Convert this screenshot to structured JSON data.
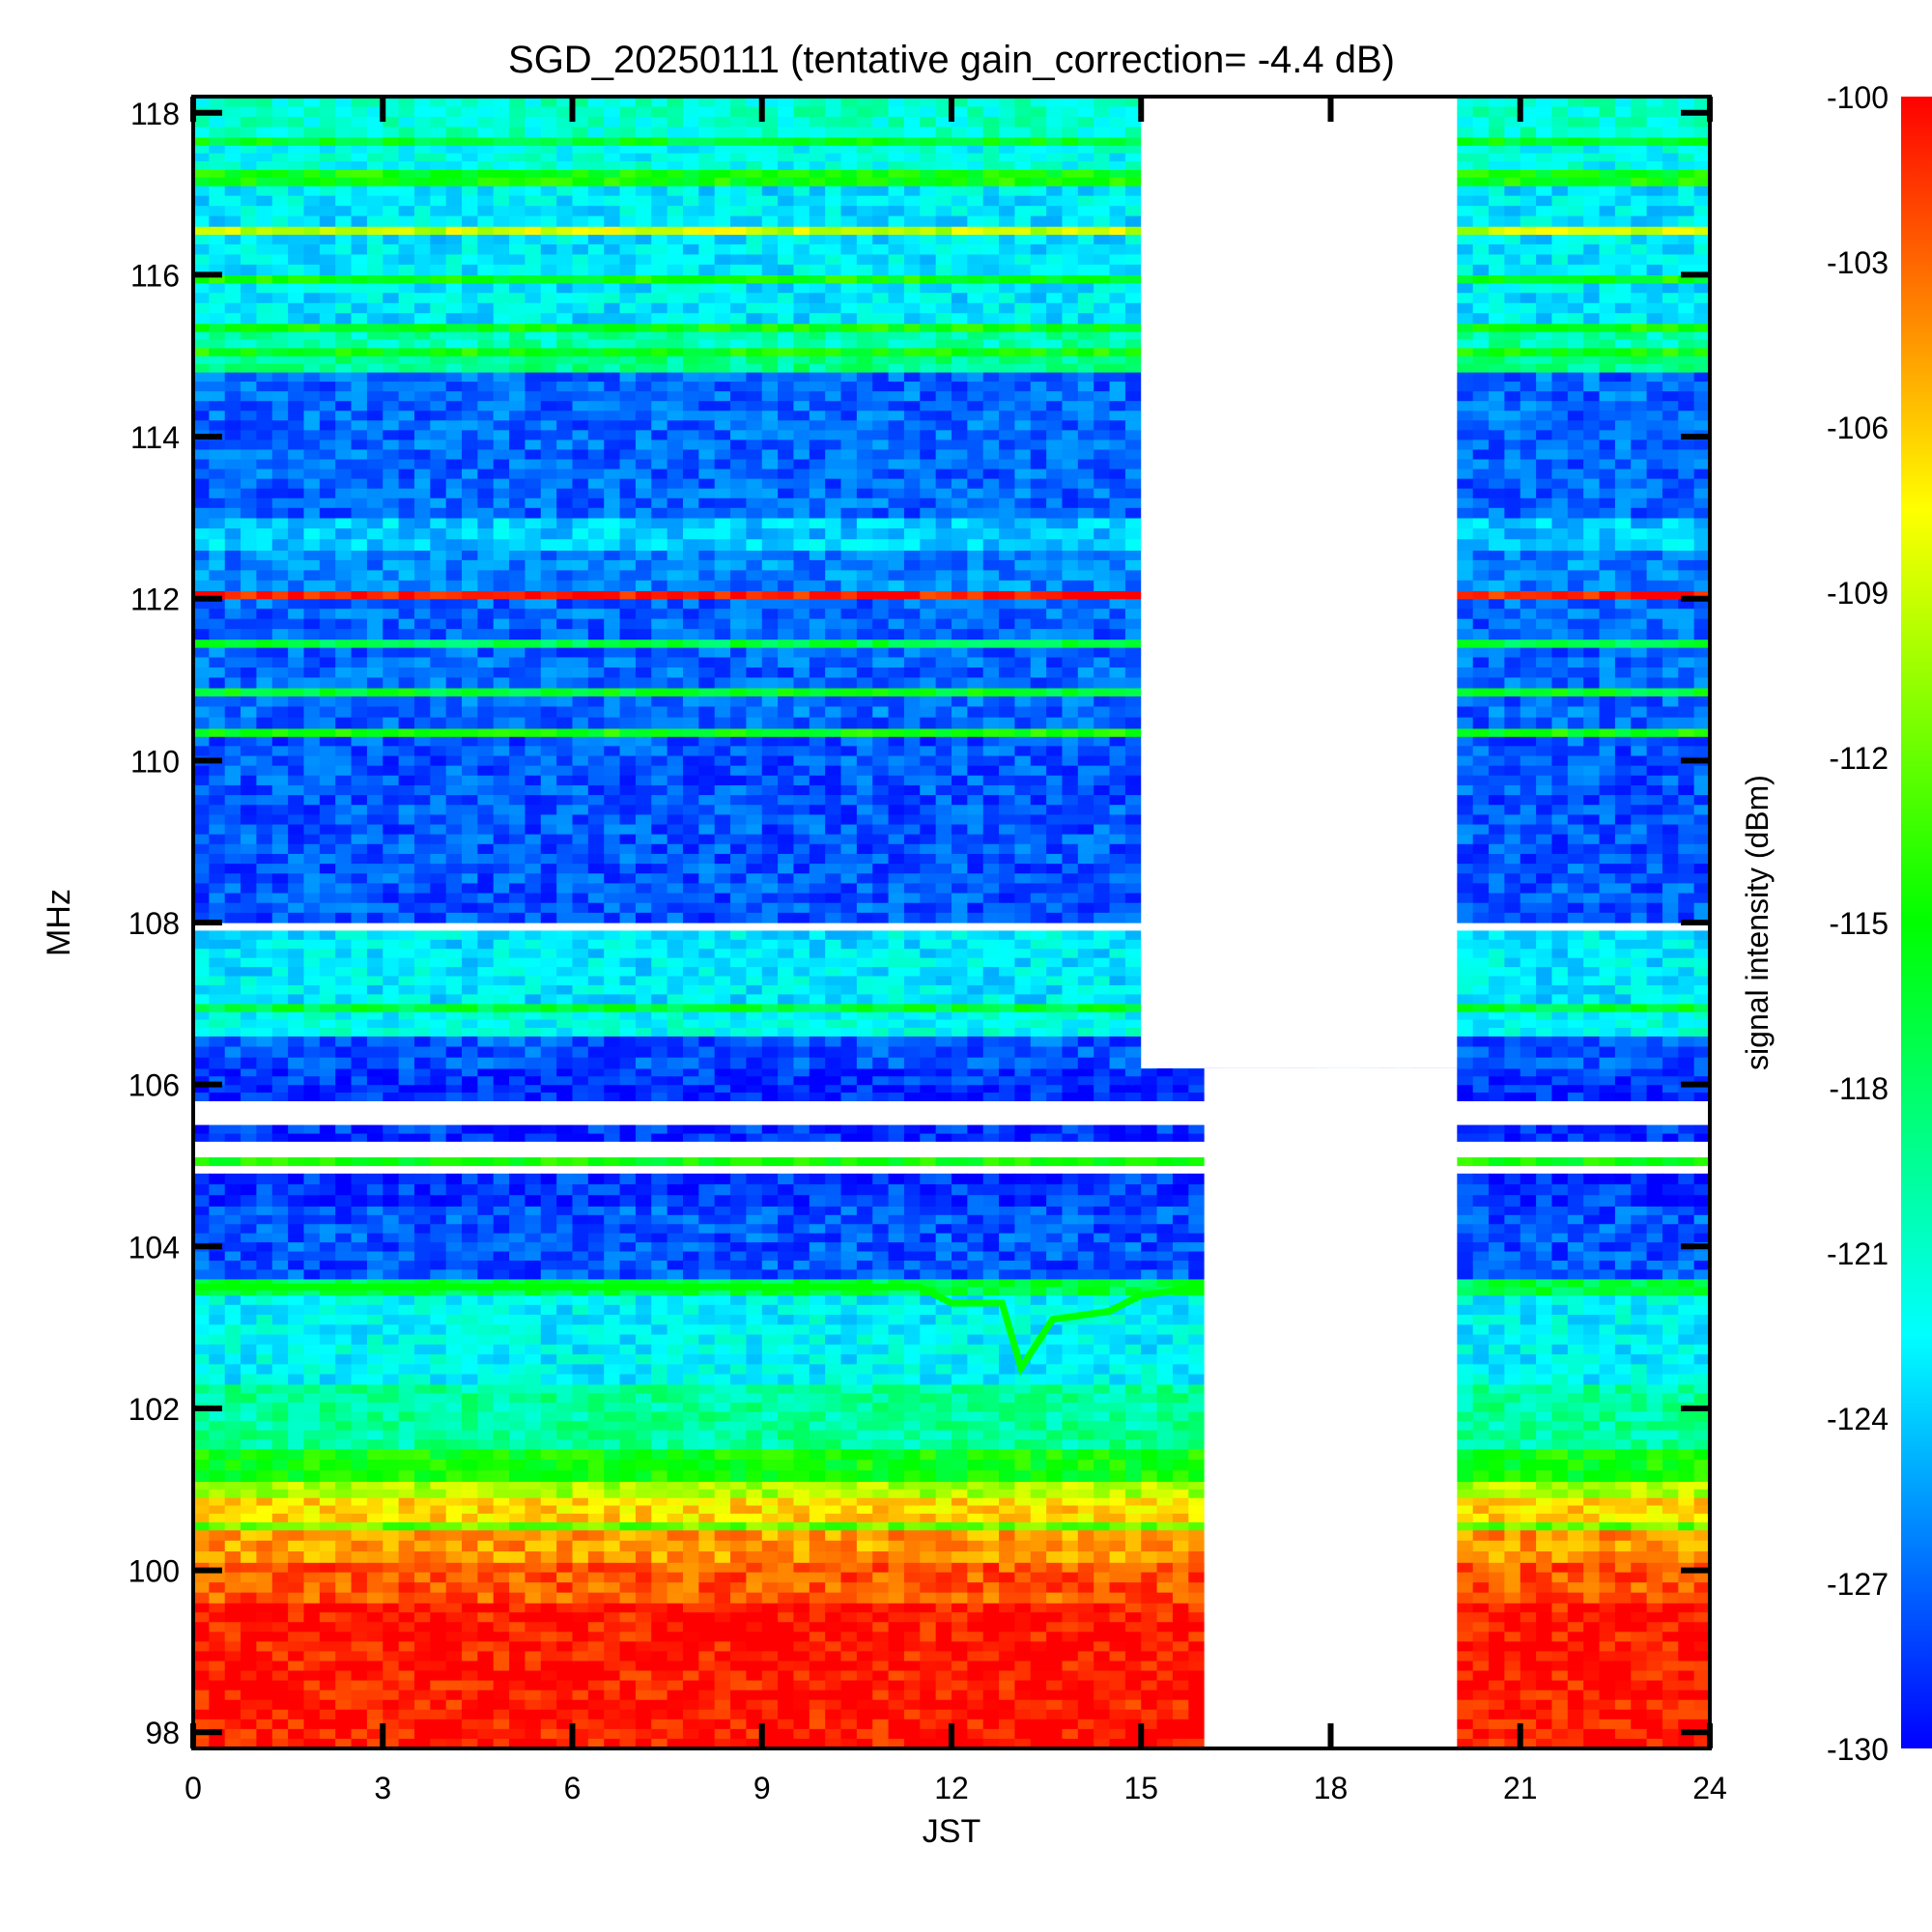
{
  "chart_data": {
    "type": "heatmap",
    "title": "SGD_20250111 (tentative gain_correction= -4.4 dB)",
    "xlabel": "JST",
    "ylabel": "MHz",
    "xlim": [
      0,
      24
    ],
    "ylim": [
      97.8,
      118.2
    ],
    "x_ticks": [
      "0",
      "3",
      "6",
      "9",
      "12",
      "15",
      "18",
      "21",
      "24"
    ],
    "y_ticks": [
      "98",
      "100",
      "102",
      "104",
      "106",
      "108",
      "110",
      "112",
      "114",
      "116",
      "118"
    ],
    "colorbar": {
      "label": "signal intensity (dBm)",
      "range": [
        -130,
        -100
      ],
      "ticks": [
        "-100",
        "-103",
        "-106",
        "-109",
        "-112",
        "-115",
        "-118",
        "-121",
        "-124",
        "-127",
        "-130"
      ],
      "colormap": [
        "#0000ff",
        "#00ffff",
        "#00ff00",
        "#ffff00",
        "#ff0000"
      ]
    },
    "data_gaps": [
      {
        "x_start": 15.0,
        "x_end": 20.0,
        "y_min": 106.2,
        "y_max": 118.2
      },
      {
        "x_start": 16.0,
        "x_end": 20.0,
        "y_min": 97.8,
        "y_max": 106.2
      }
    ],
    "rows": [
      {
        "y_from": 97.8,
        "y_to": 99.6,
        "dbm": -100.5
      },
      {
        "y_from": 99.6,
        "y_to": 100.1,
        "dbm": -102.5
      },
      {
        "y_from": 100.1,
        "y_to": 100.5,
        "dbm": -104.5
      },
      {
        "y_from": 100.5,
        "y_to": 100.6,
        "dbm": -112
      },
      {
        "y_from": 100.6,
        "y_to": 100.9,
        "dbm": -106.5
      },
      {
        "y_from": 100.9,
        "y_to": 101.1,
        "dbm": -110
      },
      {
        "y_from": 101.1,
        "y_to": 101.5,
        "dbm": -115
      },
      {
        "y_from": 101.5,
        "y_to": 102.3,
        "dbm": -119.5
      },
      {
        "y_from": 102.3,
        "y_to": 103.4,
        "dbm": -122.5
      },
      {
        "y_from": 103.4,
        "y_to": 103.6,
        "dbm": -117
      },
      {
        "y_from": 103.6,
        "y_to": 104.5,
        "dbm": -127.5
      },
      {
        "y_from": 104.5,
        "y_to": 104.9,
        "dbm": -128.5
      },
      {
        "y_from": 104.9,
        "y_to": 105.0,
        "dbm": null
      },
      {
        "y_from": 105.0,
        "y_to": 105.1,
        "dbm": -115
      },
      {
        "y_from": 105.1,
        "y_to": 105.3,
        "dbm": null
      },
      {
        "y_from": 105.3,
        "y_to": 105.4,
        "dbm": -129
      },
      {
        "y_from": 105.4,
        "y_to": 105.5,
        "dbm": -128.5
      },
      {
        "y_from": 105.5,
        "y_to": 105.8,
        "dbm": null
      },
      {
        "y_from": 105.8,
        "y_to": 106.0,
        "dbm": -129
      },
      {
        "y_from": 106.0,
        "y_to": 106.2,
        "dbm": -128.5
      },
      {
        "y_from": 106.2,
        "y_to": 106.6,
        "dbm": -127.5
      },
      {
        "y_from": 106.6,
        "y_to": 106.9,
        "dbm": -122
      },
      {
        "y_from": 106.9,
        "y_to": 107.0,
        "dbm": -116.5
      },
      {
        "y_from": 107.0,
        "y_to": 107.9,
        "dbm": -123
      },
      {
        "y_from": 107.9,
        "y_to": 108.0,
        "dbm": null
      },
      {
        "y_from": 108.0,
        "y_to": 110.3,
        "dbm": -127.5
      },
      {
        "y_from": 110.3,
        "y_to": 110.4,
        "dbm": -115
      },
      {
        "y_from": 110.4,
        "y_to": 110.8,
        "dbm": -127
      },
      {
        "y_from": 110.8,
        "y_to": 110.9,
        "dbm": -116
      },
      {
        "y_from": 110.9,
        "y_to": 111.4,
        "dbm": -127
      },
      {
        "y_from": 111.4,
        "y_to": 111.5,
        "dbm": -117
      },
      {
        "y_from": 111.5,
        "y_to": 112.0,
        "dbm": -127
      },
      {
        "y_from": 112.0,
        "y_to": 112.1,
        "dbm": -100.5
      },
      {
        "y_from": 112.1,
        "y_to": 112.6,
        "dbm": -126
      },
      {
        "y_from": 112.6,
        "y_to": 113.0,
        "dbm": -124
      },
      {
        "y_from": 113.0,
        "y_to": 114.8,
        "dbm": -127
      },
      {
        "y_from": 114.8,
        "y_to": 115.0,
        "dbm": -119
      },
      {
        "y_from": 115.0,
        "y_to": 115.1,
        "dbm": -115
      },
      {
        "y_from": 115.1,
        "y_to": 115.3,
        "dbm": -120
      },
      {
        "y_from": 115.3,
        "y_to": 115.4,
        "dbm": -115
      },
      {
        "y_from": 115.4,
        "y_to": 115.9,
        "dbm": -123
      },
      {
        "y_from": 115.9,
        "y_to": 116.0,
        "dbm": -115
      },
      {
        "y_from": 116.0,
        "y_to": 116.5,
        "dbm": -123
      },
      {
        "y_from": 116.5,
        "y_to": 116.6,
        "dbm": -109
      },
      {
        "y_from": 116.6,
        "y_to": 117.1,
        "dbm": -123
      },
      {
        "y_from": 117.1,
        "y_to": 117.3,
        "dbm": -115
      },
      {
        "y_from": 117.3,
        "y_to": 117.6,
        "dbm": -122
      },
      {
        "y_from": 117.6,
        "y_to": 117.7,
        "dbm": -116
      },
      {
        "y_from": 117.7,
        "y_to": 118.2,
        "dbm": -121
      }
    ],
    "feature_trace": {
      "dbm": -115,
      "points": [
        [
          0,
          103.5
        ],
        [
          11.5,
          103.5
        ],
        [
          12,
          103.3
        ],
        [
          12.8,
          103.3
        ],
        [
          13.1,
          102.5
        ],
        [
          13.6,
          103.1
        ],
        [
          14.5,
          103.2
        ],
        [
          15,
          103.4
        ],
        [
          16,
          103.5
        ]
      ]
    }
  }
}
